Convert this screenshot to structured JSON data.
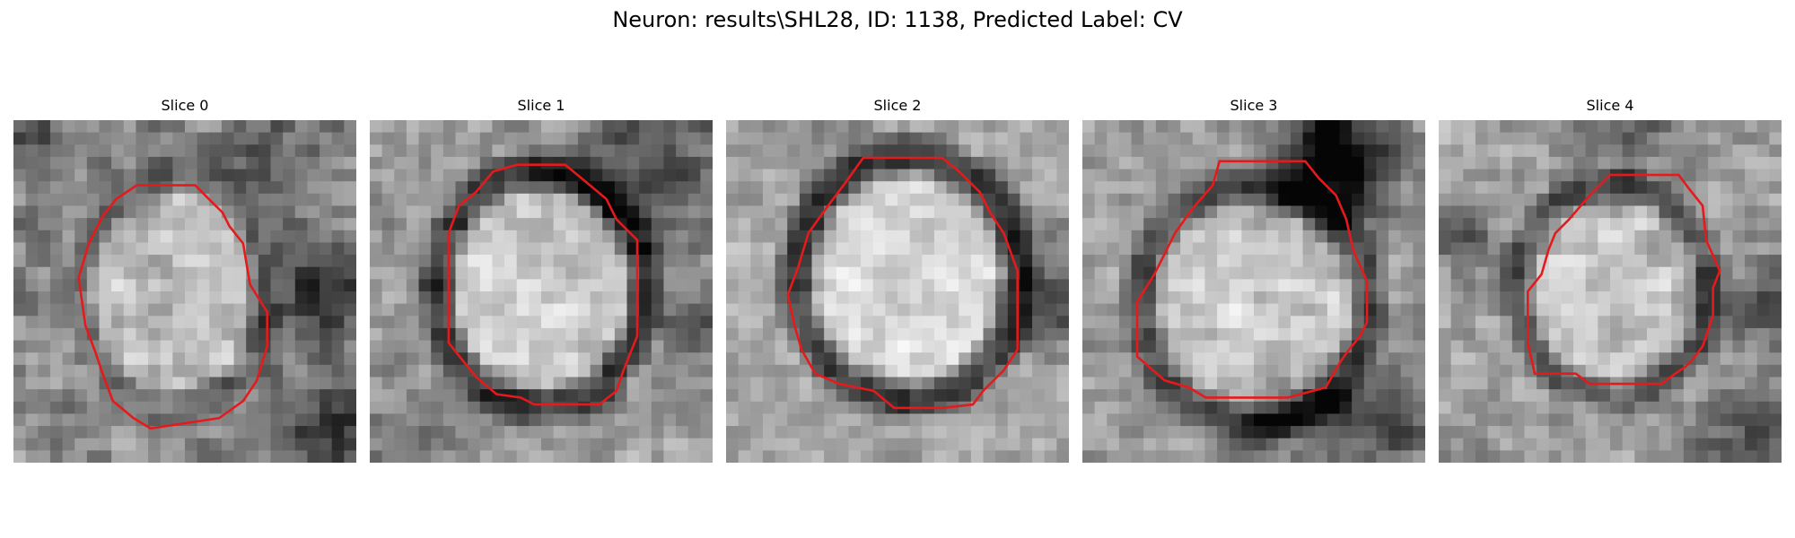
{
  "figure": {
    "title": "Neuron: results\\SHL28, ID: 1138, Predicted Label: CV"
  },
  "panels": [
    {
      "title": "Slice 0"
    },
    {
      "title": "Slice 1"
    },
    {
      "title": "Slice 2"
    },
    {
      "title": "Slice 3"
    },
    {
      "title": "Slice 4"
    }
  ],
  "colors": {
    "contour": "#e41a1c"
  }
}
